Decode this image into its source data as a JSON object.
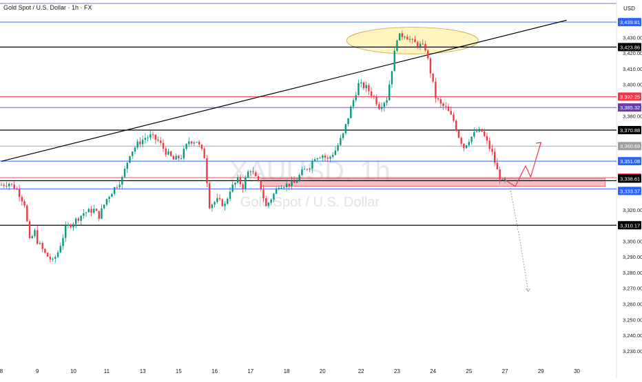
{
  "header": {
    "title": "Gold Spot / U.S. Dollar · 1h · FX",
    "currency": "USD"
  },
  "watermark": {
    "symbol": "XAUUSD, 1h",
    "name": "Gold Spot / U.S. Dollar"
  },
  "colors": {
    "up": "#089981",
    "down": "#f23645",
    "hline_black": "#000000",
    "hline_blue": "#2962ff",
    "hline_red": "#f23645",
    "hline_purple": "#673ab7",
    "hline_gray": "#9e9e9e",
    "zone": "#f7a9b3",
    "ellipse": "#fff2b3",
    "projection": "#f23645",
    "dotted": "#9e9e9e",
    "watermark": "#d1d4dc"
  },
  "chart_data": {
    "type": "candlestick",
    "ylim": [
      3222,
      3446
    ],
    "y_ticks": [
      "3,430.00",
      "3,420.00",
      "3,410.00",
      "3,400.00",
      "3,380.00",
      "3,320.00",
      "3,300.00",
      "3,290.00",
      "3,280.00",
      "3,270.00",
      "3,260.00",
      "3,250.00",
      "3,240.00",
      "3,230.00"
    ],
    "y_tick_values": [
      3430,
      3420,
      3410,
      3400,
      3380,
      3320,
      3300,
      3290,
      3280,
      3270,
      3260,
      3250,
      3240,
      3230
    ],
    "x_ticks": [
      "8",
      "9",
      "10",
      "11",
      "13",
      "15",
      "16",
      "17",
      "18",
      "20",
      "22",
      "23",
      "24",
      "25",
      "27",
      "29",
      "30"
    ],
    "x_tick_index": [
      0,
      14,
      28,
      41,
      55,
      69,
      83,
      97,
      111,
      125,
      140,
      154,
      168,
      182,
      196,
      210,
      224
    ],
    "bars_total": 232,
    "close_path": [
      [
        0,
        3336
      ],
      [
        3,
        3337
      ],
      [
        6,
        3333
      ],
      [
        9,
        3324
      ],
      [
        11,
        3300
      ],
      [
        13,
        3306
      ],
      [
        14,
        3300
      ],
      [
        17,
        3292
      ],
      [
        20,
        3287
      ],
      [
        22,
        3293
      ],
      [
        25,
        3308
      ],
      [
        28,
        3312
      ],
      [
        32,
        3318
      ],
      [
        36,
        3320
      ],
      [
        38,
        3316
      ],
      [
        41,
        3327
      ],
      [
        44,
        3334
      ],
      [
        47,
        3340
      ],
      [
        50,
        3356
      ],
      [
        53,
        3362
      ],
      [
        56,
        3366
      ],
      [
        58,
        3367
      ],
      [
        61,
        3364
      ],
      [
        64,
        3357
      ],
      [
        67,
        3352
      ],
      [
        70,
        3354
      ],
      [
        73,
        3364
      ],
      [
        76,
        3364
      ],
      [
        79,
        3354
      ],
      [
        81,
        3323
      ],
      [
        84,
        3326
      ],
      [
        87,
        3323
      ],
      [
        89,
        3333
      ],
      [
        92,
        3339
      ],
      [
        94,
        3335
      ],
      [
        96,
        3344
      ],
      [
        97,
        3346
      ],
      [
        99,
        3340
      ],
      [
        101,
        3334
      ],
      [
        103,
        3322
      ],
      [
        106,
        3330
      ],
      [
        108,
        3336
      ],
      [
        111,
        3336
      ],
      [
        114,
        3337
      ],
      [
        117,
        3344
      ],
      [
        120,
        3348
      ],
      [
        122,
        3354
      ],
      [
        125,
        3355
      ],
      [
        127,
        3352
      ],
      [
        130,
        3358
      ],
      [
        133,
        3368
      ],
      [
        136,
        3385
      ],
      [
        139,
        3400
      ],
      [
        142,
        3398
      ],
      [
        145,
        3392
      ],
      [
        147,
        3386
      ],
      [
        150,
        3391
      ],
      [
        152,
        3410
      ],
      [
        154,
        3430
      ],
      [
        157,
        3432
      ],
      [
        160,
        3427
      ],
      [
        163,
        3425
      ],
      [
        165,
        3423
      ],
      [
        167,
        3408
      ],
      [
        169,
        3392
      ],
      [
        171,
        3387
      ],
      [
        173,
        3385
      ],
      [
        176,
        3377
      ],
      [
        178,
        3367
      ],
      [
        180,
        3360
      ],
      [
        182,
        3365
      ],
      [
        185,
        3370
      ],
      [
        187,
        3370
      ],
      [
        189,
        3363
      ],
      [
        191,
        3356
      ],
      [
        193,
        3345
      ],
      [
        195,
        3337
      ],
      [
        196,
        3339
      ]
    ],
    "horizontal_levels": [
      {
        "label": "3,439.81",
        "value": 3439.81,
        "color": "blue"
      },
      {
        "label": "3,423.86",
        "value": 3423.86,
        "color": "black"
      },
      {
        "label": "3,392.25",
        "value": 3392.25,
        "color": "red"
      },
      {
        "label": "3,385.32",
        "value": 3385.32,
        "color": "purple"
      },
      {
        "label": "3,370.88",
        "value": 3370.88,
        "color": "black"
      },
      {
        "label": "3,360.69",
        "value": 3360.69,
        "color": "gray"
      },
      {
        "label": "3,351.08",
        "value": 3351.08,
        "color": "blue"
      },
      {
        "label": "3,340.57",
        "value": 3340.57,
        "color": "red"
      },
      {
        "label": "3,338.61",
        "value": 3338.61,
        "color": "black"
      },
      {
        "label": "3,333.37",
        "value": 3333.37,
        "color": "blue"
      },
      {
        "label": "3,310.17",
        "value": 3310.17,
        "color": "black"
      }
    ],
    "trendline": {
      "start": [
        0,
        3351
      ],
      "end": [
        220,
        3441
      ]
    },
    "support_zone": {
      "x_start": 101,
      "x_end": 235,
      "y_low": 3335,
      "y_high": 3340
    },
    "ellipse": {
      "x_center": 160,
      "y_center": 3428,
      "x_half_width": 16,
      "y_half_height": 10
    },
    "projection_path": [
      [
        196,
        3339
      ],
      [
        200,
        3335
      ],
      [
        204,
        3348
      ],
      [
        206,
        3341
      ],
      [
        210,
        3363
      ]
    ],
    "dotted_path": [
      [
        198,
        3334
      ],
      [
        202,
        3299
      ],
      [
        205,
        3268
      ]
    ]
  }
}
